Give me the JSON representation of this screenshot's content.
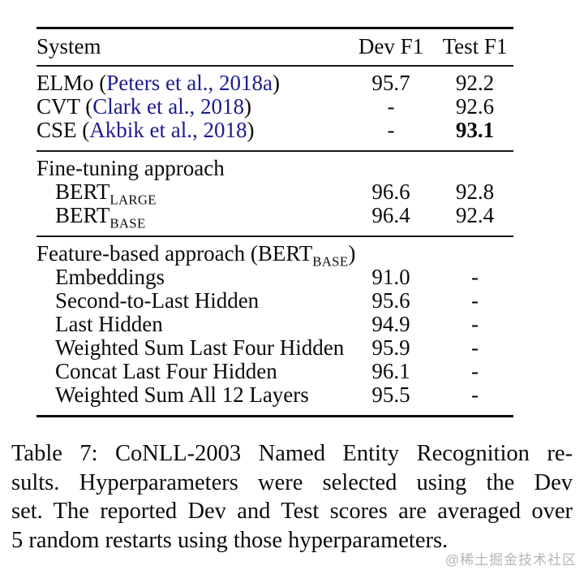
{
  "colors": {
    "citation": "#1c1c8f",
    "rule": "#0d0d0d",
    "watermark": "#b5b5b5",
    "bold_value": "#000000"
  },
  "table": {
    "header": {
      "system": "System",
      "dev": "Dev F1",
      "test": "Test F1"
    },
    "sections": [
      {
        "rows": [
          {
            "prefix": "ELMo (",
            "cite": "Peters et al., 2018a",
            "suffix": ")",
            "dev": "95.7",
            "test": "92.2"
          },
          {
            "prefix": "CVT (",
            "cite": "Clark et al., 2018",
            "suffix": ")",
            "dev": "-",
            "test": "92.6"
          },
          {
            "prefix": "CSE (",
            "cite": "Akbik et al., 2018",
            "suffix": ")",
            "dev": "-",
            "test": "93.1"
          }
        ]
      },
      {
        "title": {
          "text": "Fine-tuning approach"
        },
        "rows": [
          {
            "base": "BERT",
            "sub": "LARGE",
            "dev": "96.6",
            "test": "92.8"
          },
          {
            "base": "BERT",
            "sub": "BASE",
            "dev": "96.4",
            "test": "92.4"
          }
        ]
      },
      {
        "title": {
          "prefix": "Feature-based approach (",
          "base": "BERT",
          "sub": "BASE",
          "suffix": ")"
        },
        "rows": [
          {
            "label": "Embeddings",
            "dev": "91.0",
            "test": "-"
          },
          {
            "label": "Second-to-Last Hidden",
            "dev": "95.6",
            "test": "-"
          },
          {
            "label": "Last Hidden",
            "dev": "94.9",
            "test": "-"
          },
          {
            "label": "Weighted Sum Last Four Hidden",
            "dev": "95.9",
            "test": "-"
          },
          {
            "label": "Concat Last Four Hidden",
            "dev": "96.1",
            "test": "-"
          },
          {
            "label": "Weighted Sum All 12 Layers",
            "dev": "95.5",
            "test": "-"
          }
        ]
      }
    ]
  },
  "caption": {
    "lines": [
      "Table 7:  CoNLL-2003 Named Entity Recognition re-",
      "sults.  Hyperparameters were selected using the Dev",
      "set. The reported Dev and Test scores are averaged over",
      "5 random restarts using those hyperparameters."
    ]
  },
  "watermark": {
    "text": "@稀土掘金技术社区"
  }
}
